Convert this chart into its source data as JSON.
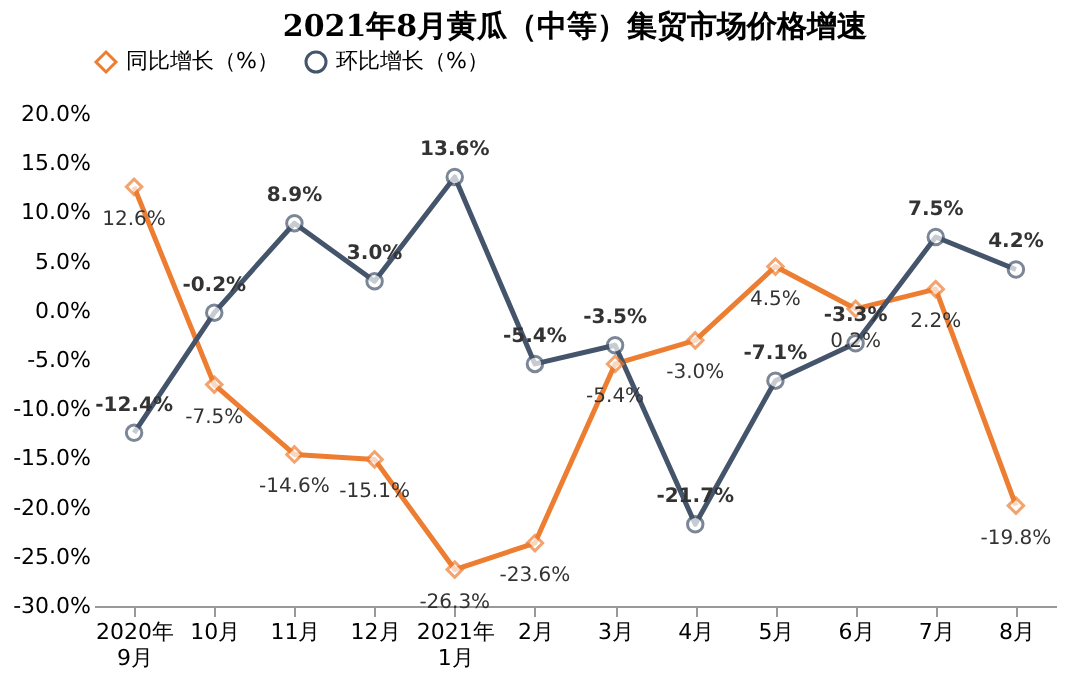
{
  "chart_data": {
    "type": "line",
    "title": "2021年8月黄瓜（中等）集贸市场价格增速",
    "categories": [
      "2020年\n9月",
      "10月",
      "11月",
      "12月",
      "2021年\n1月",
      "2月",
      "3月",
      "4月",
      "5月",
      "6月",
      "7月",
      "8月"
    ],
    "series": [
      {
        "name": "同比增长（%）",
        "color": "#ed7d31",
        "marker": "diamond",
        "values": [
          12.6,
          -7.5,
          -14.6,
          -15.1,
          -26.3,
          -23.6,
          -5.4,
          -3.0,
          4.5,
          0.2,
          2.2,
          -19.8
        ],
        "value_labels": [
          "12.6%",
          "-7.5%",
          "-14.6%",
          "-15.1%",
          "-26.3%",
          "-23.6%",
          "-5.4%",
          "-3.0%",
          "4.5%",
          "0.2%",
          "2.2%",
          "-19.8%"
        ]
      },
      {
        "name": "环比增长（%）",
        "color": "#44546a",
        "marker": "circle",
        "values": [
          -12.4,
          -0.2,
          8.9,
          3.0,
          13.6,
          -5.4,
          -3.5,
          -21.7,
          -7.1,
          -3.3,
          7.5,
          4.2
        ],
        "value_labels": [
          "-12.4%",
          "-0.2%",
          "8.9%",
          "3.0%",
          "13.6%",
          "-5.4%",
          "-3.5%",
          "-21.7%",
          "-7.1%",
          "-3.3%",
          "7.5%",
          "4.2%"
        ]
      }
    ],
    "ylim": [
      -30,
      20
    ],
    "yticks": [
      {
        "value": -30,
        "label": "-30.0%"
      },
      {
        "value": -25,
        "label": "-25.0%"
      },
      {
        "value": -20,
        "label": "-20.0%"
      },
      {
        "value": -15,
        "label": "-15.0%"
      },
      {
        "value": -10,
        "label": "-10.0%"
      },
      {
        "value": -5,
        "label": "-5.0%"
      },
      {
        "value": 0,
        "label": "0.0%"
      },
      {
        "value": 5,
        "label": "5.0%"
      },
      {
        "value": 10,
        "label": "10.0%"
      },
      {
        "value": 15,
        "label": "15.0%"
      },
      {
        "value": 20,
        "label": "20.0%"
      }
    ],
    "legend": "top",
    "grid": false
  }
}
